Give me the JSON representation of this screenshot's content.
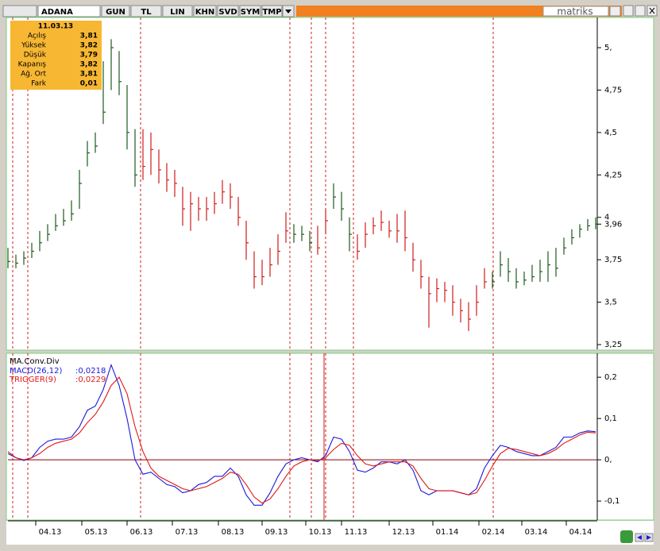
{
  "toolbar": {
    "symbol": "ADANA",
    "buttons": [
      "GUN",
      "TL",
      "LIN",
      "KHN",
      "SVD",
      "SYM",
      "TMP"
    ],
    "brand": "matriks"
  },
  "info_box": {
    "date": "11.03.13",
    "rows": [
      {
        "label": "Açılış",
        "value": "3,81"
      },
      {
        "label": "Yüksek",
        "value": "3,82"
      },
      {
        "label": "Düşük",
        "value": "3,79"
      },
      {
        "label": "Kapanış",
        "value": "3,82"
      },
      {
        "label": "Ağ. Ort",
        "value": "3,81"
      },
      {
        "label": "Fark",
        "value": "0,01"
      }
    ]
  },
  "chart_data": [
    {
      "type": "hlc",
      "x": [
        0,
        1,
        2,
        3,
        4,
        5,
        6,
        7,
        8,
        9,
        10,
        11,
        12,
        13,
        14,
        15,
        16,
        17,
        18,
        19,
        20,
        21,
        22,
        23,
        24,
        25,
        26,
        27,
        28,
        29,
        30,
        31,
        32,
        33,
        34,
        35,
        36,
        37,
        38,
        39,
        40,
        41,
        42,
        43,
        44,
        45,
        46,
        47,
        48,
        49,
        50,
        51,
        52,
        53,
        54,
        55,
        56,
        57,
        58,
        59,
        60,
        61,
        62,
        63,
        64,
        65,
        66,
        67,
        68,
        69,
        70,
        71,
        72,
        73,
        74
      ],
      "high": [
        3.82,
        3.78,
        3.8,
        3.85,
        3.92,
        3.96,
        4.02,
        4.05,
        4.1,
        4.28,
        4.45,
        4.5,
        4.92,
        5.05,
        4.98,
        4.78,
        4.52,
        4.52,
        4.5,
        4.4,
        4.32,
        4.28,
        4.18,
        4.15,
        4.12,
        4.12,
        4.15,
        4.22,
        4.2,
        4.12,
        3.98,
        3.8,
        3.75,
        3.82,
        3.9,
        4.03,
        3.96,
        3.95,
        3.92,
        3.95,
        4.05,
        4.2,
        4.15,
        4.0,
        3.9,
        3.97,
        4.0,
        4.04,
        3.98,
        4.02,
        4.04,
        3.85,
        3.75,
        3.65,
        3.64,
        3.62,
        3.6,
        3.52,
        3.5,
        3.6,
        3.7,
        3.68,
        3.8,
        3.76,
        3.7,
        3.68,
        3.72,
        3.75,
        3.8,
        3.82,
        3.88,
        3.93,
        3.96,
        3.99,
        4.0
      ],
      "low": [
        3.7,
        3.7,
        3.72,
        3.76,
        3.8,
        3.86,
        3.92,
        3.95,
        3.98,
        4.05,
        4.3,
        4.38,
        4.55,
        4.75,
        4.72,
        4.4,
        4.18,
        4.22,
        4.25,
        4.2,
        4.15,
        4.12,
        3.95,
        3.92,
        3.98,
        3.98,
        4.02,
        4.08,
        4.05,
        3.95,
        3.75,
        3.58,
        3.6,
        3.65,
        3.72,
        3.85,
        3.85,
        3.86,
        3.8,
        3.78,
        3.9,
        4.05,
        3.98,
        3.8,
        3.75,
        3.82,
        3.9,
        3.92,
        3.88,
        3.85,
        3.8,
        3.68,
        3.58,
        3.35,
        3.5,
        3.5,
        3.42,
        3.38,
        3.33,
        3.42,
        3.58,
        3.58,
        3.65,
        3.62,
        3.58,
        3.6,
        3.62,
        3.62,
        3.62,
        3.65,
        3.78,
        3.84,
        3.88,
        3.92,
        3.93
      ],
      "close": [
        3.74,
        3.73,
        3.76,
        3.8,
        3.85,
        3.9,
        3.95,
        3.98,
        4.02,
        4.2,
        4.38,
        4.42,
        4.62,
        5.0,
        4.8,
        4.5,
        4.25,
        4.3,
        4.4,
        4.28,
        4.22,
        4.2,
        4.05,
        4.08,
        4.05,
        4.05,
        4.08,
        4.15,
        4.12,
        4.0,
        3.85,
        3.65,
        3.65,
        3.72,
        3.8,
        3.92,
        3.9,
        3.9,
        3.85,
        3.82,
        3.98,
        4.12,
        4.05,
        3.9,
        3.8,
        3.9,
        3.95,
        3.97,
        3.92,
        3.92,
        3.88,
        3.75,
        3.65,
        3.55,
        3.58,
        3.57,
        3.5,
        3.45,
        3.4,
        3.5,
        3.62,
        3.62,
        3.72,
        3.68,
        3.62,
        3.63,
        3.65,
        3.68,
        3.72,
        3.7,
        3.82,
        3.88,
        3.93,
        3.95,
        3.96
      ],
      "up_color": "#1e5a1e",
      "down_color": "#d01c1c",
      "up_spans": [
        [
          0,
          16
        ],
        [
          36,
          38
        ],
        [
          41,
          43
        ],
        [
          61,
          74
        ]
      ],
      "last_value": {
        "value": 3.96,
        "label": "3,96"
      },
      "markers": [
        0.6,
        2.5,
        16.7,
        35.5,
        38.2,
        40,
        43.5,
        61.1
      ],
      "marker_color": "#d01c1c",
      "xlim": [
        0,
        74.2
      ],
      "ylim": [
        3.222,
        5.178
      ],
      "yticks": [
        {
          "value": 3.25,
          "label": "3,25"
        },
        {
          "value": 3.5,
          "label": "3,5"
        },
        {
          "value": 3.75,
          "label": "3,75"
        },
        4,
        {
          "value": 4.25,
          "label": "4,25"
        },
        {
          "value": 4.5,
          "label": "4,5"
        },
        {
          "value": 4.75,
          "label": "4,75"
        },
        {
          "value": 5,
          "label": "5,"
        }
      ]
    },
    {
      "type": "line",
      "title": "MA.Conv.Div",
      "x": [
        0,
        1,
        2,
        3,
        4,
        5,
        6,
        7,
        8,
        9,
        10,
        11,
        12,
        13,
        14,
        15,
        16,
        17,
        18,
        19,
        20,
        21,
        22,
        23,
        24,
        25,
        26,
        27,
        28,
        29,
        30,
        31,
        32,
        33,
        34,
        35,
        36,
        37,
        38,
        39,
        40,
        41,
        42,
        43,
        44,
        45,
        46,
        47,
        48,
        49,
        50,
        51,
        52,
        53,
        54,
        55,
        56,
        57,
        58,
        59,
        60,
        61,
        62,
        63,
        64,
        65,
        66,
        67,
        68,
        69,
        70,
        71,
        72,
        73,
        74
      ],
      "series": [
        {
          "name": "MACD(26,12)",
          "last_label": ":0,0218",
          "color": "#1a1adc",
          "values": [
            0.015,
            0.005,
            -0.002,
            0.005,
            0.03,
            0.045,
            0.05,
            0.05,
            0.055,
            0.08,
            0.12,
            0.13,
            0.17,
            0.23,
            0.18,
            0.1,
            0.0,
            -0.035,
            -0.03,
            -0.045,
            -0.06,
            -0.065,
            -0.08,
            -0.075,
            -0.06,
            -0.055,
            -0.04,
            -0.04,
            -0.02,
            -0.04,
            -0.085,
            -0.11,
            -0.11,
            -0.08,
            -0.04,
            -0.01,
            0.0,
            0.005,
            0.0,
            -0.005,
            0.01,
            0.055,
            0.05,
            0.02,
            -0.025,
            -0.03,
            -0.02,
            -0.005,
            -0.005,
            -0.01,
            0.0,
            -0.025,
            -0.075,
            -0.085,
            -0.075,
            -0.075,
            -0.075,
            -0.08,
            -0.085,
            -0.07,
            -0.02,
            0.01,
            0.035,
            0.03,
            0.02,
            0.015,
            0.01,
            0.01,
            0.02,
            0.03,
            0.055,
            0.055,
            0.065,
            0.07,
            0.068
          ]
        },
        {
          "name": "TRIGGER(9)",
          "last_label": ":0,0229",
          "color": "#e01818",
          "values": [
            0.02,
            0.005,
            0.0,
            0.005,
            0.015,
            0.03,
            0.04,
            0.045,
            0.05,
            0.065,
            0.09,
            0.11,
            0.14,
            0.18,
            0.2,
            0.16,
            0.08,
            0.02,
            -0.02,
            -0.04,
            -0.05,
            -0.06,
            -0.07,
            -0.075,
            -0.07,
            -0.065,
            -0.055,
            -0.045,
            -0.03,
            -0.035,
            -0.06,
            -0.09,
            -0.105,
            -0.095,
            -0.07,
            -0.04,
            -0.015,
            -0.005,
            0.0,
            -0.002,
            0.005,
            0.025,
            0.04,
            0.035,
            0.01,
            -0.01,
            -0.015,
            -0.01,
            -0.005,
            -0.005,
            -0.005,
            -0.015,
            -0.045,
            -0.07,
            -0.075,
            -0.075,
            -0.075,
            -0.08,
            -0.085,
            -0.08,
            -0.05,
            -0.015,
            0.015,
            0.028,
            0.025,
            0.02,
            0.015,
            0.01,
            0.015,
            0.025,
            0.04,
            0.05,
            0.06,
            0.067,
            0.065
          ]
        }
      ],
      "zero_line_color": "#8b0000",
      "cursor_x": 39.8,
      "xlim": [
        0,
        74.2
      ],
      "ylim": [
        -0.146,
        0.258
      ],
      "yticks": [
        {
          "value": -0.1,
          "label": "-0,1"
        },
        {
          "value": 0,
          "label": "0,"
        },
        {
          "value": 0.1,
          "label": "0,1"
        },
        {
          "value": 0.2,
          "label": "0,2"
        }
      ],
      "xticks": [
        {
          "value": 3.5,
          "label": "04.13"
        },
        {
          "value": 9.3,
          "label": "05.13"
        },
        {
          "value": 15,
          "label": "06.13"
        },
        {
          "value": 20.7,
          "label": "07.13"
        },
        {
          "value": 26.5,
          "label": "08.13"
        },
        {
          "value": 32,
          "label": "09.13"
        },
        {
          "value": 37.5,
          "label": "10.13"
        },
        {
          "value": 42,
          "label": "11.13"
        },
        {
          "value": 48,
          "label": "12.13"
        },
        {
          "value": 53.5,
          "label": "01.14"
        },
        {
          "value": 59.3,
          "label": "02.14"
        },
        {
          "value": 64.7,
          "label": "03.14"
        },
        {
          "value": 70.3,
          "label": "04.14"
        }
      ]
    }
  ]
}
